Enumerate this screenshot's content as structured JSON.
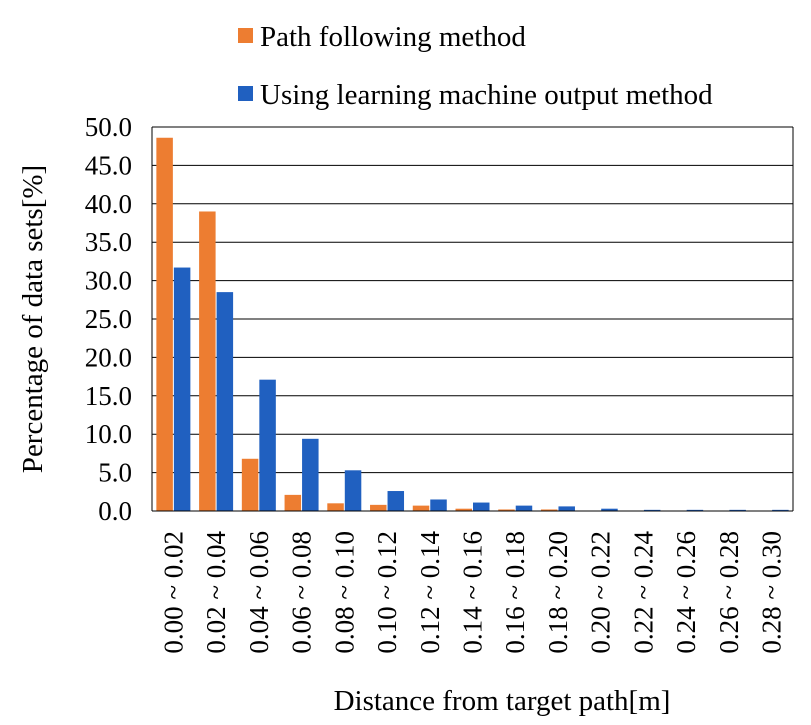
{
  "chart_data": {
    "type": "bar",
    "xlabel": "Distance from target path[m]",
    "ylabel": "Percentage of data sets[%]",
    "ylim": [
      0,
      50
    ],
    "yticks": [
      "0.0",
      "5.0",
      "10.0",
      "15.0",
      "20.0",
      "25.0",
      "30.0",
      "35.0",
      "40.0",
      "45.0",
      "50.0"
    ],
    "grid": true,
    "legend_position": "top",
    "categories": [
      "0.00 ~ 0.02",
      "0.02 ~ 0.04",
      "0.04 ~ 0.06",
      "0.06 ~ 0.08",
      "0.08 ~ 0.10",
      "0.10 ~ 0.12",
      "0.12 ~ 0.14",
      "0.14 ~ 0.16",
      "0.16 ~ 0.18",
      "0.18 ~ 0.20",
      "0.20 ~ 0.22",
      "0.22 ~ 0.24",
      "0.24 ~ 0.26",
      "0.26 ~ 0.28",
      "0.28 ~ 0.30"
    ],
    "series": [
      {
        "name": "Path following method",
        "color": "#ED7D31",
        "values": [
          48.6,
          39.0,
          6.8,
          2.1,
          1.0,
          0.8,
          0.7,
          0.3,
          0.2,
          0.2,
          0.0,
          0.0,
          0.0,
          0.0,
          0.0
        ]
      },
      {
        "name": "Using learning machine output method",
        "color": "#2060C0",
        "values": [
          31.7,
          28.5,
          17.1,
          9.4,
          5.3,
          2.6,
          1.5,
          1.1,
          0.7,
          0.6,
          0.3,
          0.15,
          0.15,
          0.15,
          0.15
        ]
      }
    ]
  }
}
